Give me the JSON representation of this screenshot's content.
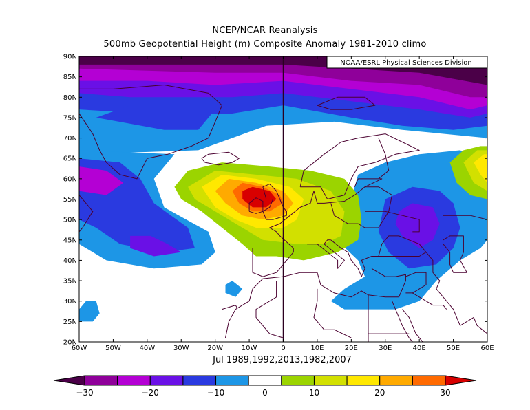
{
  "chart_data": {
    "type": "heatmap",
    "title": "NCEP/NCAR Reanalysis",
    "subtitle": "500mb Geopotential Height (m) Composite Anomaly 1981-2010 climo",
    "credit": "NOAA/ESRL Physical Sciences Division",
    "caption": "Jul 1989,1992,2013,1982,2007",
    "x_ticks": [
      "60W",
      "50W",
      "40W",
      "30W",
      "20W",
      "10W",
      "0",
      "10E",
      "20E",
      "30E",
      "40E",
      "50E",
      "60E"
    ],
    "y_ticks": [
      "90N",
      "85N",
      "80N",
      "75N",
      "70N",
      "65N",
      "60N",
      "55N",
      "50N",
      "45N",
      "40N",
      "35N",
      "30N",
      "25N",
      "20N"
    ],
    "lon_range": [
      -60,
      60
    ],
    "lat_range": [
      20,
      90
    ],
    "colorbar": {
      "levels": [
        -30,
        -25,
        -20,
        -15,
        -10,
        -5,
        5,
        10,
        15,
        20,
        25,
        30
      ],
      "tick_labels": [
        "−30",
        "−20",
        "−10",
        "0",
        "10",
        "20",
        "30"
      ],
      "tick_values": [
        -30,
        -20,
        -10,
        0,
        10,
        20,
        30
      ],
      "colors": [
        "#4b0048",
        "#8f009a",
        "#b400d4",
        "#6a10e6",
        "#2a3ae0",
        "#1d96e6",
        "#ffffff",
        "#9bd400",
        "#d2e000",
        "#ffe800",
        "#ffaa00",
        "#ff6a00",
        "#d80000"
      ]
    },
    "anomaly_features": [
      {
        "name": "positive center",
        "lon": -8,
        "lat": 57,
        "value": 30
      },
      {
        "name": "negative center",
        "lon": 38,
        "lat": 50,
        "value": -20
      },
      {
        "name": "negative center",
        "lon": -55,
        "lat": 59,
        "value": -25
      },
      {
        "name": "negative center",
        "lon": -40,
        "lat": 46,
        "value": -20
      },
      {
        "name": "arctic negative",
        "lon": 0,
        "lat": 88,
        "value": -30
      },
      {
        "name": "positive edge",
        "lon": 60,
        "lat": 64,
        "value": 15
      }
    ]
  }
}
